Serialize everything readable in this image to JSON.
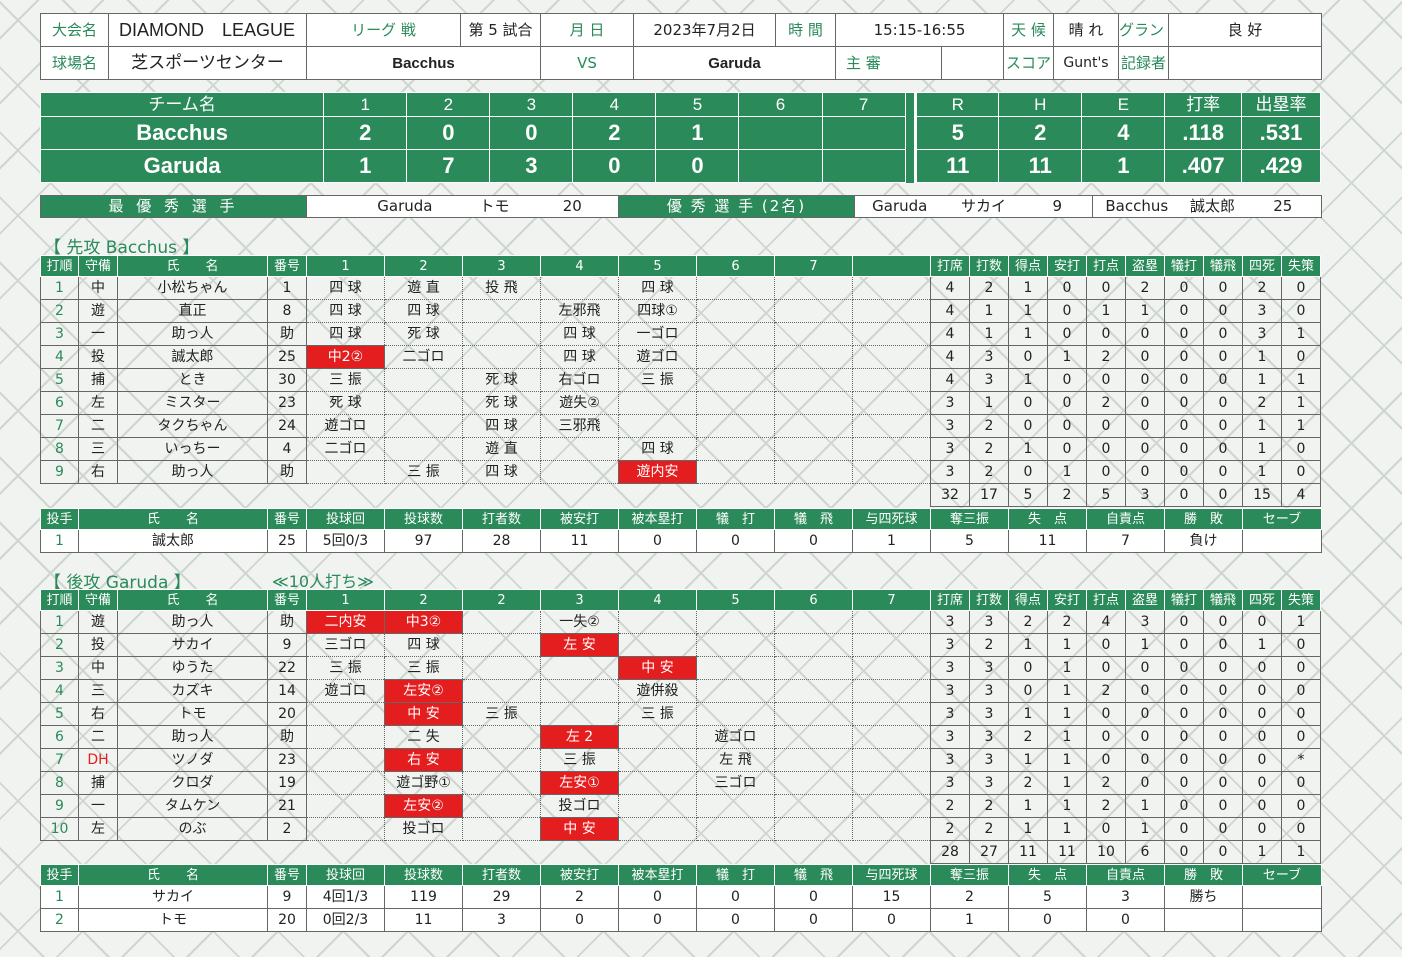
{
  "info": {
    "taikai_label": "大会名",
    "taikai": "DIAMOND　LEAGUE",
    "league_label": "リーグ 戦",
    "round": "第 5 試合",
    "date_label": "月 日",
    "date": "2023年7月2日",
    "time_label": "時 間",
    "time": "15:15-16:55",
    "weather_label": "天 候",
    "weather": "晴 れ",
    "ground_label": "グランド",
    "ground": "良 好",
    "venue_label": "球場名",
    "venue": "芝スポーツセンター",
    "home": "Bacchus",
    "vs": "VS",
    "away": "Garuda",
    "umpire_label": "主 審",
    "umpire": "",
    "score_label": "スコア",
    "scorer": "Gunt's",
    "recorder_label": "記録者",
    "recorder": ""
  },
  "scoreboard": {
    "headers": [
      "チーム名",
      "1",
      "2",
      "3",
      "4",
      "5",
      "6",
      "7",
      "",
      "R",
      "H",
      "E",
      "打率",
      "出塁率"
    ],
    "rows": [
      [
        "Bacchus",
        "2",
        "0",
        "0",
        "2",
        "1",
        "",
        "",
        "",
        "5",
        "2",
        "4",
        ".118",
        ".531"
      ],
      [
        "Garuda",
        "1",
        "7",
        "3",
        "0",
        "0",
        "",
        "",
        "",
        "11",
        "11",
        "1",
        ".407",
        ".429"
      ]
    ]
  },
  "mvp": {
    "best_label": "最 優 秀 選 手",
    "best_team": "Garuda",
    "best_name": "トモ",
    "best_no": "20",
    "good_label": "優 秀 選 手 (2名)",
    "good1_team": "Garuda",
    "good1_name": "サカイ",
    "good1_no": "9",
    "good2_team": "Bacchus",
    "good2_name": "誠太郎",
    "good2_no": "25"
  },
  "top": {
    "title": "【 先攻 Bacchus 】",
    "headers": [
      "打順",
      "守備",
      "氏　　名",
      "番号",
      "1",
      "2",
      "3",
      "4",
      "5",
      "6",
      "7",
      "",
      "打席",
      "打数",
      "得点",
      "安打",
      "打点",
      "盗塁",
      "犠打",
      "犠飛",
      "四死",
      "失策"
    ],
    "rows": [
      {
        "c": [
          "1",
          "中",
          "小松ちゃん",
          "1",
          "四 球",
          "遊 直",
          "投 飛",
          "",
          "四 球",
          "",
          "",
          "",
          "4",
          "2",
          "1",
          "0",
          "0",
          "2",
          "0",
          "0",
          "2",
          "0"
        ],
        "r": []
      },
      {
        "c": [
          "2",
          "遊",
          "直正",
          "8",
          "四 球",
          "四 球",
          "",
          "左邪飛",
          "四球①",
          "",
          "",
          "",
          "4",
          "1",
          "1",
          "0",
          "1",
          "1",
          "0",
          "0",
          "3",
          "0"
        ],
        "r": []
      },
      {
        "c": [
          "3",
          "一",
          "助っ人",
          "助",
          "四 球",
          "死 球",
          "",
          "四 球",
          "一ゴロ",
          "",
          "",
          "",
          "4",
          "1",
          "1",
          "0",
          "0",
          "0",
          "0",
          "0",
          "3",
          "1"
        ],
        "r": []
      },
      {
        "c": [
          "4",
          "投",
          "誠太郎",
          "25",
          "中2②",
          "二ゴロ",
          "",
          "四 球",
          "遊ゴロ",
          "",
          "",
          "",
          "4",
          "3",
          "0",
          "1",
          "2",
          "0",
          "0",
          "0",
          "1",
          "0"
        ],
        "r": [
          4
        ]
      },
      {
        "c": [
          "5",
          "捕",
          "とき",
          "30",
          "三 振",
          "",
          "死 球",
          "右ゴロ",
          "三 振",
          "",
          "",
          "",
          "4",
          "3",
          "1",
          "0",
          "0",
          "0",
          "0",
          "0",
          "1",
          "1"
        ],
        "r": []
      },
      {
        "c": [
          "6",
          "左",
          "ミスター",
          "23",
          "死 球",
          "",
          "死 球",
          "遊失②",
          "",
          "",
          "",
          "",
          "3",
          "1",
          "0",
          "0",
          "2",
          "0",
          "0",
          "0",
          "2",
          "1"
        ],
        "r": []
      },
      {
        "c": [
          "7",
          "二",
          "タクちゃん",
          "24",
          "遊ゴロ",
          "",
          "四 球",
          "三邪飛",
          "",
          "",
          "",
          "",
          "3",
          "2",
          "0",
          "0",
          "0",
          "0",
          "0",
          "0",
          "1",
          "1"
        ],
        "r": []
      },
      {
        "c": [
          "8",
          "三",
          "いっちー",
          "4",
          "二ゴロ",
          "",
          "遊 直",
          "",
          "四 球",
          "",
          "",
          "",
          "3",
          "2",
          "1",
          "0",
          "0",
          "0",
          "0",
          "0",
          "1",
          "0"
        ],
        "r": []
      },
      {
        "c": [
          "9",
          "右",
          "助っ人",
          "助",
          "",
          "三 振",
          "四 球",
          "",
          "遊内安",
          "",
          "",
          "",
          "3",
          "2",
          "0",
          "1",
          "0",
          "0",
          "0",
          "0",
          "1",
          "0"
        ],
        "r": [
          8
        ]
      }
    ],
    "totals": [
      "32",
      "17",
      "5",
      "2",
      "5",
      "3",
      "0",
      "0",
      "15",
      "4"
    ]
  },
  "top_pitch": {
    "headers": [
      "投手",
      "氏　　名",
      "番号",
      "投球回",
      "投球数",
      "打者数",
      "被安打",
      "被本塁打",
      "犠　打",
      "犠　飛",
      "与四死球",
      "奪三振",
      "失　点",
      "自責点",
      "勝　敗",
      "セーブ"
    ],
    "rows": [
      [
        "1",
        "誠太郎",
        "25",
        "5回0/3",
        "97",
        "28",
        "11",
        "0",
        "0",
        "0",
        "1",
        "5",
        "11",
        "7",
        "負け",
        ""
      ]
    ]
  },
  "bottom": {
    "title": "【 後攻 Garuda 】",
    "note": "≪10人打ち≫",
    "headers": [
      "打順",
      "守備",
      "氏　　名",
      "番号",
      "1",
      "2",
      "2",
      "3",
      "4",
      "5",
      "6",
      "7",
      "打席",
      "打数",
      "得点",
      "安打",
      "打点",
      "盗塁",
      "犠打",
      "犠飛",
      "四死",
      "失策"
    ],
    "rows": [
      {
        "c": [
          "1",
          "遊",
          "助っ人",
          "助",
          "二内安",
          "中3②",
          "",
          "一失②",
          "",
          "",
          "",
          "",
          "3",
          "3",
          "2",
          "2",
          "4",
          "3",
          "0",
          "0",
          "0",
          "1"
        ],
        "r": [
          4,
          5
        ]
      },
      {
        "c": [
          "2",
          "投",
          "サカイ",
          "9",
          "三ゴロ",
          "四 球",
          "",
          "左 安",
          "",
          "",
          "",
          "",
          "3",
          "2",
          "1",
          "1",
          "0",
          "1",
          "0",
          "0",
          "1",
          "0"
        ],
        "r": [
          7
        ]
      },
      {
        "c": [
          "3",
          "中",
          "ゆうた",
          "22",
          "三 振",
          "三 振",
          "",
          "",
          "中 安",
          "",
          "",
          "",
          "3",
          "3",
          "0",
          "1",
          "0",
          "0",
          "0",
          "0",
          "0",
          "0"
        ],
        "r": [
          8
        ]
      },
      {
        "c": [
          "4",
          "三",
          "カズキ",
          "14",
          "遊ゴロ",
          "左安②",
          "",
          "",
          "遊併殺",
          "",
          "",
          "",
          "3",
          "3",
          "0",
          "1",
          "2",
          "0",
          "0",
          "0",
          "0",
          "0"
        ],
        "r": [
          5
        ]
      },
      {
        "c": [
          "5",
          "右",
          "トモ",
          "20",
          "",
          "中 安",
          "三 振",
          "",
          "三 振",
          "",
          "",
          "",
          "3",
          "3",
          "1",
          "1",
          "0",
          "0",
          "0",
          "0",
          "0",
          "0"
        ],
        "r": [
          5
        ]
      },
      {
        "c": [
          "6",
          "二",
          "助っ人",
          "助",
          "",
          "二 失",
          "",
          "左 2",
          "",
          "遊ゴロ",
          "",
          "",
          "3",
          "3",
          "2",
          "1",
          "0",
          "0",
          "0",
          "0",
          "0",
          "0"
        ],
        "r": [
          7
        ]
      },
      {
        "c": [
          "7",
          "DH",
          "ツノダ",
          "23",
          "",
          "右 安",
          "",
          "三 振",
          "",
          "左 飛",
          "",
          "",
          "3",
          "3",
          "1",
          "1",
          "0",
          "0",
          "0",
          "0",
          "0",
          "*"
        ],
        "r": [
          5
        ]
      },
      {
        "c": [
          "8",
          "捕",
          "クロダ",
          "19",
          "",
          "遊ゴ野①",
          "",
          "左安①",
          "",
          "三ゴロ",
          "",
          "",
          "3",
          "3",
          "2",
          "1",
          "2",
          "0",
          "0",
          "0",
          "0",
          "0"
        ],
        "r": [
          7
        ]
      },
      {
        "c": [
          "9",
          "一",
          "タムケン",
          "21",
          "",
          "左安②",
          "",
          "投ゴロ",
          "",
          "",
          "",
          "",
          "2",
          "2",
          "1",
          "1",
          "2",
          "1",
          "0",
          "0",
          "0",
          "0"
        ],
        "r": [
          5
        ]
      },
      {
        "c": [
          "10",
          "左",
          "のぶ",
          "2",
          "",
          "投ゴロ",
          "",
          "中 安",
          "",
          "",
          "",
          "",
          "2",
          "2",
          "1",
          "1",
          "0",
          "1",
          "0",
          "0",
          "0",
          "0"
        ],
        "r": [
          7
        ]
      }
    ],
    "totals": [
      "28",
      "27",
      "11",
      "11",
      "10",
      "6",
      "0",
      "0",
      "1",
      "1"
    ]
  },
  "bottom_pitch": {
    "headers": [
      "投手",
      "氏　　名",
      "番号",
      "投球回",
      "投球数",
      "打者数",
      "被安打",
      "被本塁打",
      "犠　打",
      "犠　飛",
      "与四死球",
      "奪三振",
      "失　点",
      "自責点",
      "勝　敗",
      "セーブ"
    ],
    "rows": [
      [
        "1",
        "サカイ",
        "9",
        "4回1/3",
        "119",
        "29",
        "2",
        "0",
        "0",
        "0",
        "15",
        "2",
        "5",
        "3",
        "勝ち",
        ""
      ],
      [
        "2",
        "トモ",
        "20",
        "0回2/3",
        "11",
        "3",
        "0",
        "0",
        "0",
        "0",
        "0",
        "1",
        "0",
        "0",
        "",
        ""
      ]
    ]
  },
  "colors": {
    "green": "#2a8a5a",
    "red": "#e41e1e"
  }
}
